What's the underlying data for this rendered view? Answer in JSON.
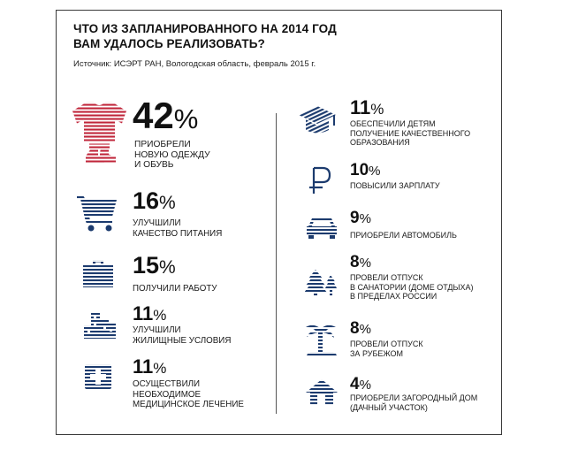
{
  "title_lines": [
    "ЧТО ИЗ ЗАПЛАНИРОВАННОГО НА 2014 ГОД",
    "ВАМ УДАЛОСЬ РЕАЛИЗОВАТЬ?"
  ],
  "source": "Источник: ИСЭРТ РАН, Вологодская область, февраль 2015 г.",
  "colors": {
    "red": "#c0253a",
    "navy": "#1c3b6e",
    "text": "#1a1a1a"
  },
  "chart_data": {
    "type": "pictogram",
    "title": "ЧТО ИЗ ЗАПЛАНИРОВАННОГО НА 2014 ГОД ВАМ УДАЛОСЬ РЕАЛИЗОВАТЬ?",
    "unit": "%",
    "items": [
      {
        "value": 42,
        "value_text": "42",
        "icon": "clothes-icon",
        "label_lines": [
          "ПРИОБРЕЛИ",
          "НОВУЮ ОДЕЖДУ",
          "И ОБУВЬ"
        ]
      },
      {
        "value": 16,
        "value_text": "16",
        "icon": "shopping-cart-icon",
        "label_lines": [
          "УЛУЧШИЛИ",
          "КАЧЕСТВО ПИТАНИЯ"
        ]
      },
      {
        "value": 15,
        "value_text": "15",
        "icon": "briefcase-icon",
        "label_lines": [
          "ПОЛУЧИЛИ РАБОТУ"
        ]
      },
      {
        "value": 11,
        "value_text": "11",
        "icon": "buildings-icon",
        "label_lines": [
          "УЛУЧШИЛИ",
          "ЖИЛИЩНЫЕ УСЛОВИЯ"
        ]
      },
      {
        "value": 11,
        "value_text": "11",
        "icon": "medical-cross-icon",
        "label_lines": [
          "ОСУЩЕСТВИЛИ",
          "НЕОБХОДИМОЕ",
          "МЕДИЦИНСКОЕ ЛЕЧЕНИЕ"
        ]
      },
      {
        "value": 11,
        "value_text": "11",
        "icon": "graduation-cap-icon",
        "label_lines": [
          "ОБЕСПЕЧИЛИ ДЕТЯМ",
          "ПОЛУЧЕНИЕ КАЧЕСТВЕННОГО",
          "ОБРАЗОВАНИЯ"
        ]
      },
      {
        "value": 10,
        "value_text": "10",
        "icon": "ruble-icon",
        "label_lines": [
          "ПОВЫСИЛИ ЗАРПЛАТУ"
        ]
      },
      {
        "value": 9,
        "value_text": "9",
        "icon": "car-icon",
        "label_lines": [
          "ПРИОБРЕЛИ АВТОМОБИЛЬ"
        ]
      },
      {
        "value": 8,
        "value_text": "8",
        "icon": "pine-trees-icon",
        "label_lines": [
          "ПРОВЕЛИ ОТПУСК",
          "В САНАТОРИИ (ДОМЕ ОТДЫХА)",
          "В ПРЕДЕЛАХ РОССИИ"
        ]
      },
      {
        "value": 8,
        "value_text": "8",
        "icon": "palm-tree-icon",
        "label_lines": [
          "ПРОВЕЛИ ОТПУСК",
          "ЗА РУБЕЖОМ"
        ]
      },
      {
        "value": 4,
        "value_text": "4",
        "icon": "house-icon",
        "label_lines": [
          "ПРИОБРЕЛИ ЗАГОРОДНЫЙ ДОМ",
          "(ДАЧНЫЙ УЧАСТОК)"
        ]
      }
    ]
  }
}
